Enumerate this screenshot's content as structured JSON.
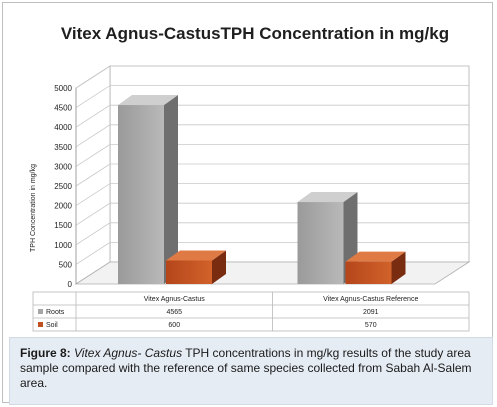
{
  "chart_data": {
    "type": "bar",
    "title": "Vitex Agnus-CastusTPH Concentration in mg/kg",
    "ylabel": "TPH Concentration in mg/kg",
    "ylim": [
      0,
      5000
    ],
    "yticks": [
      "0",
      "500",
      "1000",
      "1500",
      "2000",
      "2500",
      "3000",
      "3500",
      "4000",
      "4500",
      "5000"
    ],
    "categories": [
      "Vitex Agnus-Castus",
      "Vitex Agnus-Castus Reference"
    ],
    "series": [
      {
        "name": "Roots",
        "values": [
          4565,
          2091
        ],
        "color": "#a6a6a6"
      },
      {
        "name": "Soil",
        "values": [
          600,
          570
        ],
        "color": "#c0501f"
      }
    ],
    "legend": "data-table",
    "grid": true,
    "three_d": true
  },
  "table": {
    "rows": [
      {
        "label": "Roots",
        "cells": [
          "4565",
          "2091"
        ]
      },
      {
        "label": "Soil",
        "cells": [
          "600",
          "570"
        ]
      }
    ]
  },
  "caption": {
    "figure_label": "Figure 8:",
    "species": "Vitex Agnus- Castus",
    "text": " TPH concentrations in mg/kg results of the study area sample compared with the reference of same species collected from Sabah Al-Salem area."
  }
}
